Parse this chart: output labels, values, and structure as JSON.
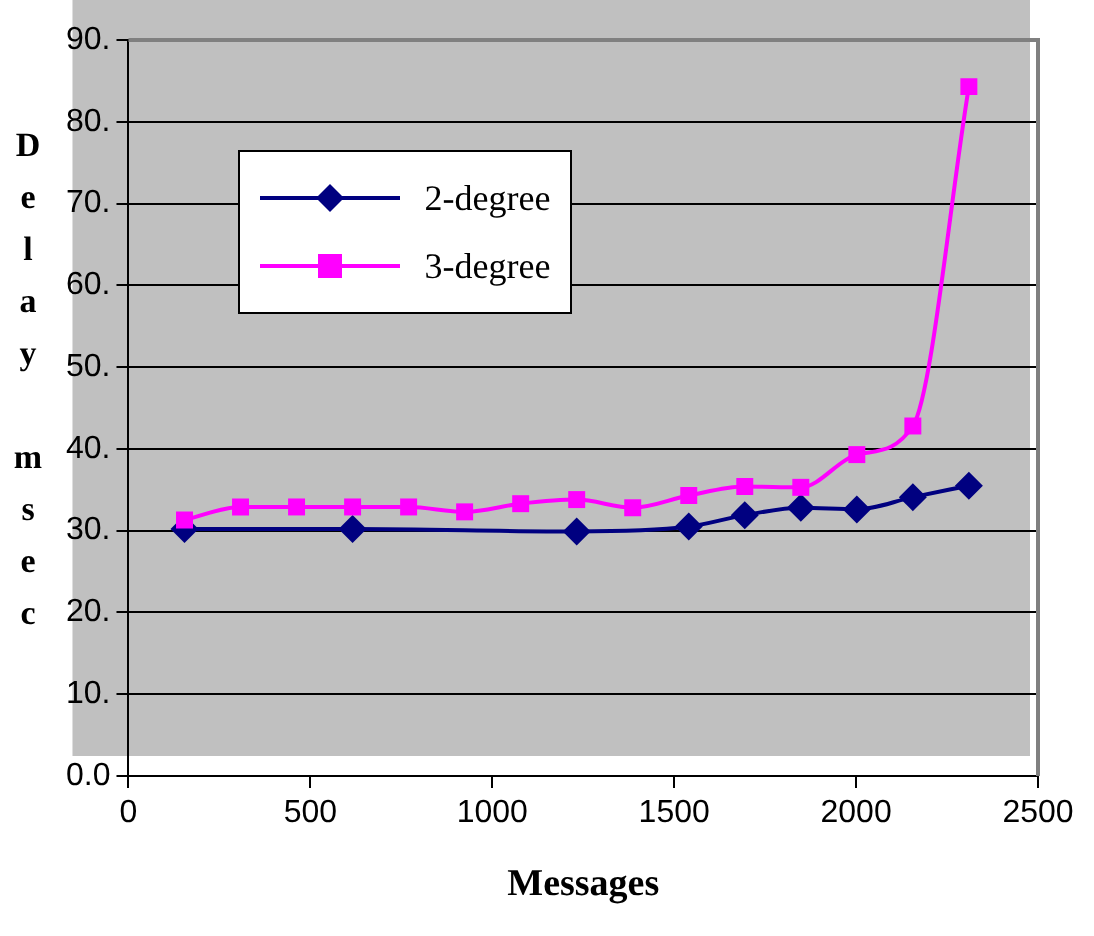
{
  "chart_data": {
    "type": "line",
    "xlabel": "Messages",
    "ylabel": "Delay msec",
    "xlim": [
      0,
      2500
    ],
    "xticks": [
      0,
      500,
      1000,
      1500,
      2000,
      2500
    ],
    "ylim": [
      0,
      90
    ],
    "yticks": [
      {
        "value": 0,
        "label": "0.0"
      },
      {
        "value": 10,
        "label": "10."
      },
      {
        "value": 20,
        "label": "20."
      },
      {
        "value": 30,
        "label": "30."
      },
      {
        "value": 40,
        "label": "40."
      },
      {
        "value": 50,
        "label": "50."
      },
      {
        "value": 60,
        "label": "60."
      },
      {
        "value": 70,
        "label": "70."
      },
      {
        "value": 80,
        "label": "80."
      },
      {
        "value": 90,
        "label": "90."
      }
    ],
    "grid": "y",
    "legend": "top left",
    "series": [
      {
        "name": "2-degree",
        "color": "#000080",
        "marker": "diamond",
        "x": [
          154,
          616,
          1232,
          1540,
          1694,
          1848,
          2002,
          2156,
          2310
        ],
        "values": [
          30.2,
          30.2,
          29.9,
          30.5,
          31.9,
          32.8,
          32.6,
          34.1,
          35.5
        ]
      },
      {
        "name": "3-degree",
        "color": "#ff00ff",
        "marker": "square",
        "x": [
          154,
          308,
          462,
          616,
          770,
          924,
          1078,
          1232,
          1386,
          1540,
          1694,
          1848,
          2002,
          2156,
          2310
        ],
        "values": [
          31.3,
          32.9,
          32.9,
          32.9,
          32.9,
          32.3,
          33.3,
          33.8,
          32.8,
          34.3,
          35.4,
          35.3,
          39.3,
          42.8,
          84.3
        ]
      }
    ]
  }
}
